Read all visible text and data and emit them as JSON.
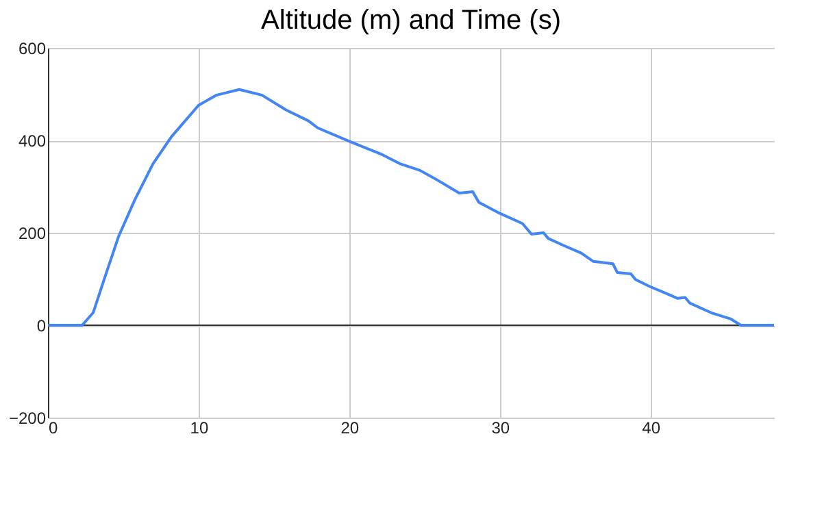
{
  "chart_data": {
    "type": "line",
    "title": "Altitude (m) and Time (s)",
    "x": [
      0,
      2.27,
      3.0,
      3.79,
      4.7,
      5.76,
      6.97,
      8.2,
      10,
      11.2,
      12.7,
      14.2,
      15.8,
      17.3,
      17.9,
      20,
      22.2,
      23.4,
      24.7,
      25.8,
      27.3,
      28.2,
      28.6,
      30,
      31.5,
      32.1,
      32.9,
      33.2,
      34.2,
      35.4,
      36.2,
      37.5,
      37.8,
      38.7,
      39,
      40,
      41.1,
      41.8,
      42.3,
      42.6,
      44.1,
      45.3,
      46,
      47.7,
      48.2
    ],
    "series": [
      {
        "color": "#4285f4",
        "values": [
          0,
          0,
          27,
          105,
          193,
          271,
          349,
          408,
          476,
          498,
          510,
          498,
          466,
          442,
          427,
          398,
          369,
          349,
          335,
          315,
          286,
          289,
          266,
          242,
          220,
          197,
          200,
          188,
          173,
          156,
          138,
          133,
          114,
          111,
          99,
          83,
          68,
          58,
          60,
          48,
          26,
          14,
          0,
          0,
          0
        ]
      }
    ],
    "xlim": [
      0,
      48.2
    ],
    "xticks": [
      0,
      10,
      20,
      30,
      40
    ],
    "ylim": [
      -200,
      600
    ],
    "yticks": [
      -200,
      0,
      200,
      400,
      600
    ],
    "grid": true,
    "ref_lines": [
      {
        "axis": "y",
        "value": 0,
        "color": "#333333"
      }
    ]
  }
}
